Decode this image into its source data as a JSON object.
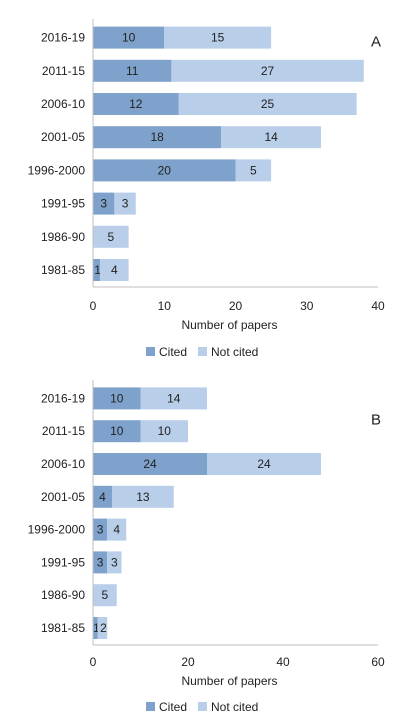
{
  "colors": {
    "cited": "#7ea2cc",
    "not_cited": "#b9cfe9",
    "axis": "#bfbfbf",
    "text": "#222222"
  },
  "chart_data": [
    {
      "type": "bar",
      "orientation": "horizontal",
      "stacked": true,
      "panel_label": "A",
      "categories": [
        "2016-19",
        "2011-15",
        "2006-10",
        "2001-05",
        "1996-2000",
        "1991-95",
        "1986-90",
        "1981-85"
      ],
      "series": [
        {
          "name": "Cited",
          "values": [
            10,
            11,
            12,
            18,
            20,
            3,
            0,
            1
          ]
        },
        {
          "name": "Not cited",
          "values": [
            15,
            27,
            25,
            14,
            5,
            3,
            5,
            4
          ]
        }
      ],
      "xlabel": "Number of papers",
      "xlim": [
        0,
        40
      ],
      "xticks": [
        0,
        10,
        20,
        30,
        40
      ],
      "legend": "bottom",
      "grid": false
    },
    {
      "type": "bar",
      "orientation": "horizontal",
      "stacked": true,
      "panel_label": "B",
      "categories": [
        "2016-19",
        "2011-15",
        "2006-10",
        "2001-05",
        "1996-2000",
        "1991-95",
        "1986-90",
        "1981-85"
      ],
      "series": [
        {
          "name": "Cited",
          "values": [
            10,
            10,
            24,
            4,
            3,
            3,
            0,
            1
          ]
        },
        {
          "name": "Not cited",
          "values": [
            14,
            10,
            24,
            13,
            4,
            3,
            5,
            2
          ]
        }
      ],
      "xlabel": "Number of papers",
      "xlim": [
        0,
        60
      ],
      "xticks": [
        0,
        20,
        40,
        60
      ],
      "legend": "bottom",
      "grid": false
    }
  ]
}
